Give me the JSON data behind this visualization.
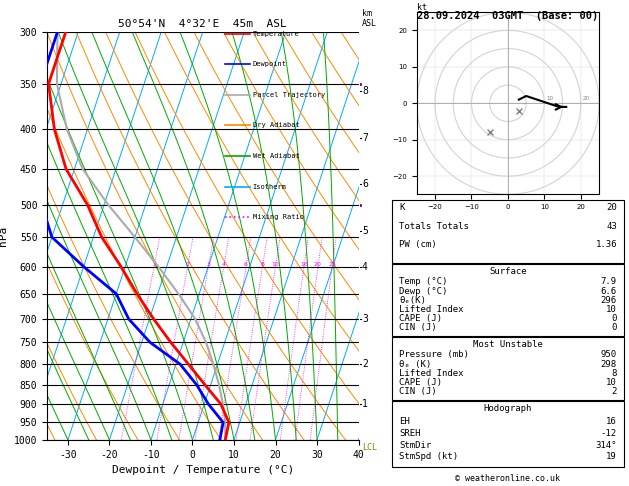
{
  "title_left": "50°54'N  4°32'E  45m  ASL",
  "title_right": "28.09.2024  03GMT  (Base: 00)",
  "xlabel": "Dewpoint / Temperature (°C)",
  "pressure_levels": [
    300,
    350,
    400,
    450,
    500,
    550,
    600,
    650,
    700,
    750,
    800,
    850,
    900,
    950,
    1000
  ],
  "temp_xlim": [
    -35,
    40
  ],
  "temp_xticks": [
    -30,
    -20,
    -10,
    0,
    10,
    20,
    30,
    40
  ],
  "p_min": 300,
  "p_max": 1000,
  "skew_factor": 32.5,
  "temp_profile_T": [
    7.9,
    7.4,
    4.0,
    -1.4,
    -7.0,
    -13.0,
    -19.0,
    -25.0,
    -31.0,
    -38.0,
    -44.0,
    -52.0,
    -58.0,
    -63.0,
    -63.0
  ],
  "temp_profile_p": [
    1000,
    950,
    900,
    850,
    800,
    750,
    700,
    650,
    600,
    550,
    500,
    450,
    400,
    350,
    300
  ],
  "dewp_profile_T": [
    6.6,
    6.0,
    1.0,
    -3.4,
    -9.0,
    -18.0,
    -25.0,
    -30.0,
    -40.0,
    -50.0,
    -55.0,
    -60.0,
    -63.0,
    -65.0,
    -65.0
  ],
  "dewp_profile_p": [
    1000,
    950,
    900,
    850,
    800,
    750,
    700,
    650,
    600,
    550,
    500,
    450,
    400,
    350,
    300
  ],
  "parcel_T": [
    7.9,
    6.5,
    4.5,
    2.0,
    -1.0,
    -4.5,
    -9.0,
    -15.0,
    -22.0,
    -30.0,
    -39.0,
    -48.0,
    -55.0,
    -61.0,
    -65.0
  ],
  "parcel_p": [
    1000,
    950,
    900,
    850,
    800,
    750,
    700,
    650,
    600,
    550,
    500,
    450,
    400,
    350,
    300
  ],
  "colors": {
    "temperature": "#ff0000",
    "dewpoint": "#0000ff",
    "parcel": "#aaaaaa",
    "dry_adiabat": "#ff8800",
    "wet_adiabat": "#00aa00",
    "isotherm": "#00aaff",
    "mixing_ratio": "#ff00ff",
    "background": "#ffffff",
    "grid": "#000000"
  },
  "mixing_ratios": [
    1,
    2,
    3,
    4,
    6,
    8,
    10,
    16,
    20,
    25
  ],
  "km_values": [
    1,
    2,
    3,
    4,
    5,
    6,
    7,
    8
  ],
  "km_pressures": [
    900,
    800,
    700,
    600,
    540,
    470,
    410,
    357
  ],
  "info_box": {
    "K": 20,
    "Totals_Totals": 43,
    "PW_cm": 1.36,
    "Surface_Temp": 7.9,
    "Surface_Dewp": 6.6,
    "Surface_ThetaE": 296,
    "Surface_LiftedIndex": 10,
    "Surface_CAPE": 0,
    "Surface_CIN": 0,
    "MU_Pressure": 950,
    "MU_ThetaE": 298,
    "MU_LiftedIndex": 8,
    "MU_CAPE": 10,
    "MU_CIN": 2,
    "Hodo_EH": 16,
    "Hodo_SREH": -12,
    "Hodo_StmDir": "314°",
    "Hodo_StmSpd": 19
  },
  "legend_items": [
    [
      "Temperature",
      "#ff0000",
      "-"
    ],
    [
      "Dewpoint",
      "#0000ff",
      "-"
    ],
    [
      "Parcel Trajectory",
      "#aaaaaa",
      "-"
    ],
    [
      "Dry Adiabat",
      "#ff8800",
      "-"
    ],
    [
      "Wet Adiabat",
      "#00aa00",
      "-"
    ],
    [
      "Isotherm",
      "#00aaff",
      "-"
    ],
    [
      "Mixing Ratio",
      "#ff00ff",
      ":"
    ]
  ],
  "hodo_u": [
    3,
    5,
    8,
    11,
    14,
    16
  ],
  "hodo_v": [
    1,
    2,
    1,
    0,
    -1,
    -1
  ],
  "wind_barb_p_cyan": [
    950,
    900,
    850
  ],
  "wind_barb_p_green": [
    700,
    650,
    600
  ]
}
